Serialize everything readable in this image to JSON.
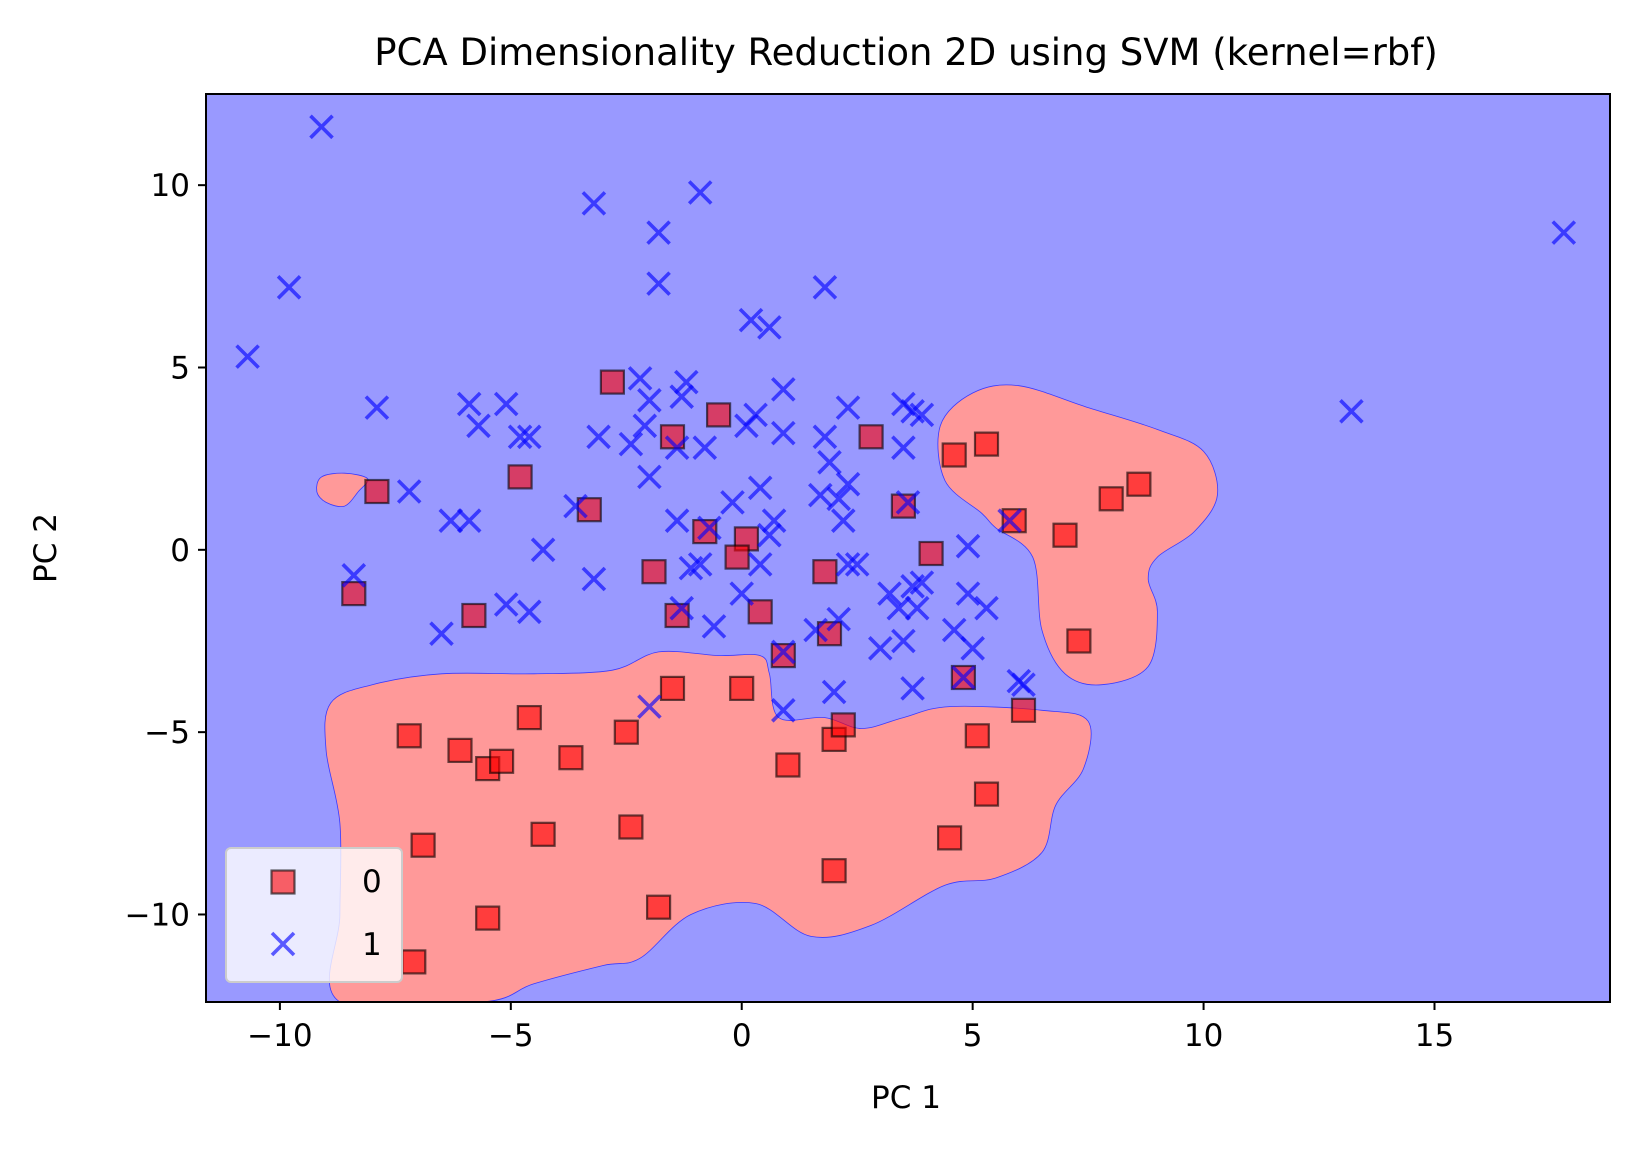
{
  "chart_data": {
    "type": "scatter",
    "title": "PCA Dimensionality Reduction 2D using SVM (kernel=rbf)",
    "xlabel": "PC 1",
    "ylabel": "PC 2",
    "xlim": [
      -11.6,
      18.8
    ],
    "ylim": [
      -12.4,
      12.5
    ],
    "xticks": [
      -10,
      -5,
      0,
      5,
      10,
      15
    ],
    "yticks": [
      -10,
      -5,
      0,
      5,
      10
    ],
    "xtick_labels": [
      "−10",
      "−5",
      "0",
      "5",
      "10",
      "15"
    ],
    "ytick_labels": [
      "−10",
      "−5",
      "0",
      "5",
      "10"
    ],
    "grid": false,
    "legend_position": "lower-left",
    "background": {
      "class_1_region_color": "#9999ff",
      "class_0_region_color": "#ff9999"
    },
    "series": [
      {
        "name": "0",
        "marker": "square",
        "color": "#ff0000",
        "points": [
          [
            -2.8,
            4.6
          ],
          [
            -1.5,
            3.1
          ],
          [
            -0.5,
            3.7
          ],
          [
            2.8,
            3.1
          ],
          [
            -4.8,
            2.0
          ],
          [
            -3.3,
            1.1
          ],
          [
            -7.9,
            1.6
          ],
          [
            3.5,
            1.2
          ],
          [
            -0.8,
            0.5
          ],
          [
            0.1,
            0.3
          ],
          [
            -0.1,
            -0.2
          ],
          [
            4.1,
            -0.1
          ],
          [
            -1.9,
            -0.6
          ],
          [
            1.8,
            -0.6
          ],
          [
            -8.4,
            -1.2
          ],
          [
            -5.8,
            -1.8
          ],
          [
            -1.4,
            -1.8
          ],
          [
            0.4,
            -1.7
          ],
          [
            1.9,
            -2.3
          ],
          [
            0.9,
            -2.9
          ],
          [
            4.6,
            2.6
          ],
          [
            5.3,
            2.9
          ],
          [
            5.9,
            0.8
          ],
          [
            7.0,
            0.4
          ],
          [
            8.0,
            1.4
          ],
          [
            8.6,
            1.8
          ],
          [
            7.3,
            -2.5
          ],
          [
            4.8,
            -3.5
          ],
          [
            6.1,
            -4.4
          ],
          [
            -1.5,
            -3.8
          ],
          [
            0.0,
            -3.8
          ],
          [
            -7.2,
            -5.1
          ],
          [
            -6.1,
            -5.5
          ],
          [
            -5.5,
            -6.0
          ],
          [
            -5.2,
            -5.8
          ],
          [
            -4.6,
            -4.6
          ],
          [
            -3.7,
            -5.7
          ],
          [
            -2.5,
            -5.0
          ],
          [
            1.0,
            -5.9
          ],
          [
            2.0,
            -5.2
          ],
          [
            2.2,
            -4.8
          ],
          [
            5.1,
            -5.1
          ],
          [
            5.3,
            -6.7
          ],
          [
            4.5,
            -7.9
          ],
          [
            -6.9,
            -8.1
          ],
          [
            -4.3,
            -7.8
          ],
          [
            -2.4,
            -7.6
          ],
          [
            2.0,
            -8.8
          ],
          [
            -1.8,
            -9.8
          ],
          [
            -5.5,
            -10.1
          ],
          [
            -7.1,
            -11.3
          ]
        ]
      },
      {
        "name": "1",
        "marker": "x",
        "color": "#0000ff",
        "points": [
          [
            -9.1,
            11.6
          ],
          [
            -0.9,
            9.8
          ],
          [
            -3.2,
            9.5
          ],
          [
            -1.8,
            8.7
          ],
          [
            -9.8,
            7.2
          ],
          [
            -1.8,
            7.3
          ],
          [
            1.8,
            7.2
          ],
          [
            17.8,
            8.7
          ],
          [
            -10.7,
            5.3
          ],
          [
            0.2,
            6.3
          ],
          [
            0.6,
            6.1
          ],
          [
            -7.9,
            3.9
          ],
          [
            -2.2,
            4.7
          ],
          [
            -1.2,
            4.6
          ],
          [
            -1.3,
            4.2
          ],
          [
            -5.9,
            4.0
          ],
          [
            -5.1,
            4.0
          ],
          [
            -5.7,
            3.4
          ],
          [
            -4.8,
            3.1
          ],
          [
            -4.6,
            3.1
          ],
          [
            -3.1,
            3.1
          ],
          [
            -2.4,
            2.9
          ],
          [
            -2.1,
            3.4
          ],
          [
            -1.4,
            2.8
          ],
          [
            -0.8,
            2.8
          ],
          [
            0.1,
            3.4
          ],
          [
            0.3,
            3.7
          ],
          [
            0.9,
            4.4
          ],
          [
            0.9,
            3.2
          ],
          [
            1.8,
            3.1
          ],
          [
            2.3,
            3.9
          ],
          [
            3.5,
            4.0
          ],
          [
            3.7,
            3.8
          ],
          [
            3.9,
            3.7
          ],
          [
            3.5,
            2.8
          ],
          [
            1.9,
            2.4
          ],
          [
            -2.0,
            2.0
          ],
          [
            -7.2,
            1.6
          ],
          [
            -3.6,
            1.2
          ],
          [
            -6.3,
            0.8
          ],
          [
            -5.9,
            0.8
          ],
          [
            -1.4,
            0.8
          ],
          [
            -0.7,
            0.6
          ],
          [
            -0.2,
            1.3
          ],
          [
            0.4,
            1.7
          ],
          [
            0.7,
            0.8
          ],
          [
            1.7,
            1.5
          ],
          [
            2.1,
            1.4
          ],
          [
            2.3,
            1.8
          ],
          [
            2.2,
            0.8
          ],
          [
            3.6,
            1.3
          ],
          [
            -4.3,
            0.0
          ],
          [
            0.6,
            0.4
          ],
          [
            4.9,
            0.1
          ],
          [
            5.8,
            0.8
          ],
          [
            -8.4,
            -0.7
          ],
          [
            -3.2,
            -0.8
          ],
          [
            -1.1,
            -0.5
          ],
          [
            -0.9,
            -0.4
          ],
          [
            0.4,
            -0.4
          ],
          [
            2.3,
            -0.4
          ],
          [
            2.5,
            -0.4
          ],
          [
            3.2,
            -1.2
          ],
          [
            3.7,
            -1.0
          ],
          [
            3.9,
            -0.9
          ],
          [
            3.4,
            -1.6
          ],
          [
            3.8,
            -1.6
          ],
          [
            0.0,
            -1.2
          ],
          [
            -6.5,
            -2.3
          ],
          [
            -5.1,
            -1.5
          ],
          [
            -4.6,
            -1.7
          ],
          [
            -1.3,
            -1.6
          ],
          [
            -0.6,
            -2.1
          ],
          [
            1.6,
            -2.2
          ],
          [
            2.1,
            -1.9
          ],
          [
            3.0,
            -2.7
          ],
          [
            3.5,
            -2.5
          ],
          [
            4.6,
            -2.2
          ],
          [
            4.9,
            -1.2
          ],
          [
            5.3,
            -1.6
          ],
          [
            5.0,
            -2.7
          ],
          [
            4.8,
            -3.5
          ],
          [
            6.0,
            -3.6
          ],
          [
            6.1,
            -3.7
          ],
          [
            3.7,
            -3.8
          ],
          [
            2.0,
            -3.9
          ],
          [
            0.9,
            -4.4
          ],
          [
            -2.0,
            -4.3
          ],
          [
            -2.0,
            4.1
          ],
          [
            13.2,
            3.8
          ],
          [
            0.9,
            -2.8
          ]
        ]
      }
    ],
    "decision_regions": {
      "class_0": [
        [
          [
            -8.3,
            1.6
          ],
          [
            -8.1,
            1.95
          ],
          [
            -8.6,
            2.1
          ],
          [
            -9.1,
            2.0
          ],
          [
            -9.2,
            1.6
          ],
          [
            -9.0,
            1.3
          ],
          [
            -8.6,
            1.2
          ]
        ],
        [
          [
            4.3,
            3.4
          ],
          [
            5.0,
            4.3
          ],
          [
            6.0,
            4.5
          ],
          [
            7.5,
            3.9
          ],
          [
            9.0,
            3.3
          ],
          [
            10.0,
            2.7
          ],
          [
            10.3,
            1.5
          ],
          [
            9.8,
            0.5
          ],
          [
            9.0,
            -0.2
          ],
          [
            8.8,
            -0.8
          ],
          [
            9.0,
            -1.7
          ],
          [
            8.8,
            -3.2
          ],
          [
            7.8,
            -3.7
          ],
          [
            7.0,
            -3.4
          ],
          [
            6.5,
            -2.2
          ],
          [
            6.3,
            -0.2
          ],
          [
            5.5,
            0.6
          ],
          [
            5.2,
            1.0
          ],
          [
            4.4,
            1.9
          ]
        ],
        [
          [
            -8.9,
            -4.2
          ],
          [
            -8.0,
            -3.7
          ],
          [
            -6.5,
            -3.4
          ],
          [
            -4.5,
            -3.4
          ],
          [
            -2.8,
            -3.3
          ],
          [
            -1.8,
            -2.8
          ],
          [
            -0.5,
            -2.9
          ],
          [
            0.4,
            -2.9
          ],
          [
            0.6,
            -3.4
          ],
          [
            0.8,
            -4.6
          ],
          [
            1.8,
            -4.6
          ],
          [
            2.6,
            -4.9
          ],
          [
            3.5,
            -4.6
          ],
          [
            4.5,
            -4.3
          ],
          [
            6.5,
            -4.4
          ],
          [
            7.5,
            -4.7
          ],
          [
            7.4,
            -6.0
          ],
          [
            6.8,
            -7.0
          ],
          [
            6.5,
            -8.3
          ],
          [
            5.5,
            -9.0
          ],
          [
            4.4,
            -9.2
          ],
          [
            2.8,
            -10.3
          ],
          [
            1.5,
            -10.6
          ],
          [
            0.3,
            -9.7
          ],
          [
            -1.1,
            -10.0
          ],
          [
            -2.2,
            -11.2
          ],
          [
            -3.0,
            -11.4
          ],
          [
            -4.5,
            -11.9
          ],
          [
            -5.6,
            -12.4
          ],
          [
            -8.7,
            -12.4
          ],
          [
            -8.7,
            -10.0
          ],
          [
            -8.7,
            -7.5
          ],
          [
            -9.0,
            -5.5
          ]
        ]
      ]
    },
    "legend": {
      "entries": [
        {
          "label": "0",
          "marker": "square",
          "color": "#ff0000"
        },
        {
          "label": "1",
          "marker": "x",
          "color": "#0000ff"
        }
      ]
    }
  }
}
